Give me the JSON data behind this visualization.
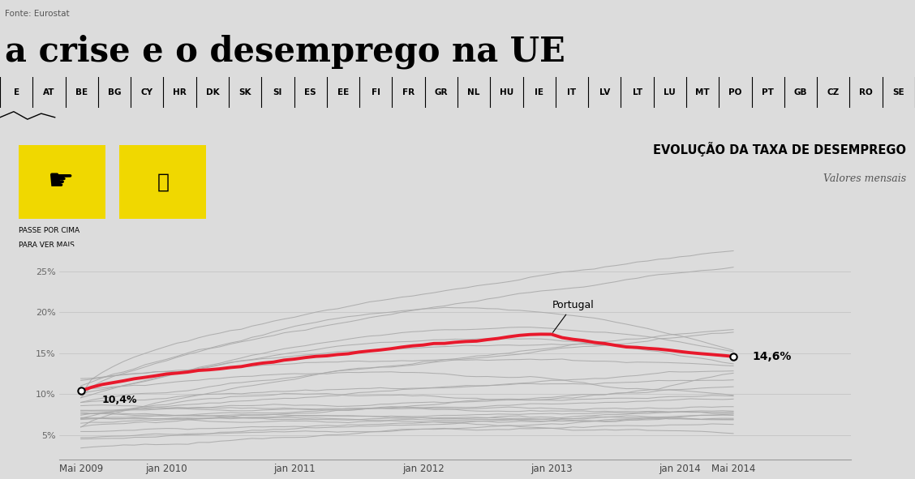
{
  "title_main": "a crise e o desemprego na UE",
  "subtitle": "EVOLUÇÃO DA TAXA DE DESEMPREGO",
  "subtitle2": "Valores mensais",
  "source": "Fonte: Eurostat",
  "background_color": "#dcdcdc",
  "yellow_color": "#f0d800",
  "portugal_color": "#e8192c",
  "other_color": "#aaaaaa",
  "portugal_start": 10.4,
  "portugal_end": 14.6,
  "portugal_peak": 17.5,
  "portugal_peak_idx": 44,
  "annotation_portugal": "Portugal",
  "countries": [
    "E",
    "AT",
    "BE",
    "BG",
    "CY",
    "HR",
    "DK",
    "SK",
    "SI",
    "ES",
    "EE",
    "FI",
    "FR",
    "GR",
    "NL",
    "HU",
    "IE",
    "IT",
    "LV",
    "LT",
    "LU",
    "MT",
    "PO",
    "PT",
    "GB",
    "CZ",
    "RO",
    "SE"
  ],
  "x_ticks_labels": [
    "Mai 2009",
    "jan 2010",
    "jan 2011",
    "jan 2012",
    "jan 2013",
    "jan 2014",
    "Mai 2014"
  ],
  "x_ticks_pos": [
    0,
    8,
    20,
    32,
    44,
    56,
    61
  ],
  "ylim": [
    2,
    28
  ],
  "n_points": 62
}
